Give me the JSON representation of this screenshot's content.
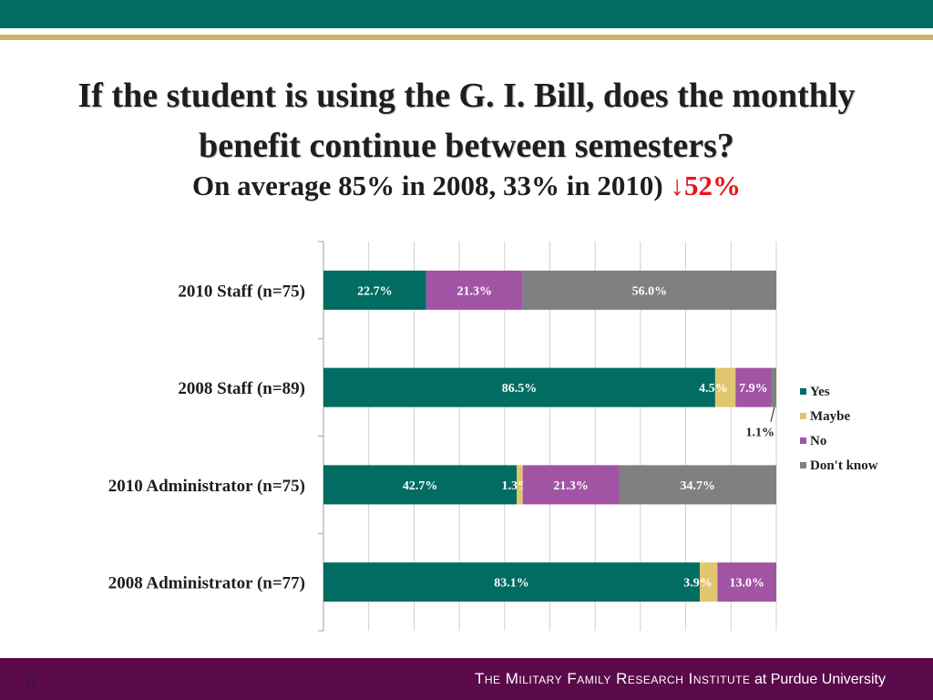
{
  "header": {
    "title": "If the student is using the G. I. Bill, does the monthly benefit continue between semesters?",
    "subtitle": "On average 85% in 2008, 33% in 2010)",
    "subtitle_accent": "↓52%"
  },
  "chart_data": {
    "type": "bar",
    "orientation": "horizontal",
    "stacked": true,
    "title": "",
    "xlabel": "",
    "ylabel": "",
    "xlim": [
      0,
      100
    ],
    "grid": true,
    "legend": "right",
    "categories": [
      "2010 Staff (n=75)",
      "2008 Staff (n=89)",
      "2010 Administrator (n=75)",
      "2008 Administrator (n=77)"
    ],
    "series": [
      {
        "name": "Yes",
        "color": "#006c62",
        "values": [
          22.7,
          86.5,
          42.7,
          83.1
        ]
      },
      {
        "name": "Maybe",
        "color": "#e0c66e",
        "values": [
          0,
          4.5,
          1.3,
          3.9
        ]
      },
      {
        "name": "No",
        "color": "#a154a4",
        "values": [
          21.3,
          7.9,
          21.3,
          13.0
        ]
      },
      {
        "name": "Don't know",
        "color": "#808080",
        "values": [
          56.0,
          1.1,
          34.7,
          0
        ]
      }
    ],
    "data_labels": [
      [
        "22.7%",
        "",
        "21.3%",
        "56.0%"
      ],
      [
        "86.5%",
        "4.5%",
        "7.9%",
        "1.1%"
      ],
      [
        "42.7%",
        "1.3%",
        "21.3%",
        "34.7%"
      ],
      [
        "83.1%",
        "3.9%",
        "13.0%",
        ""
      ]
    ]
  },
  "footer": {
    "page_number": "13",
    "institute": "The Military Family Research Institute",
    "affiliation": "at Purdue University"
  }
}
